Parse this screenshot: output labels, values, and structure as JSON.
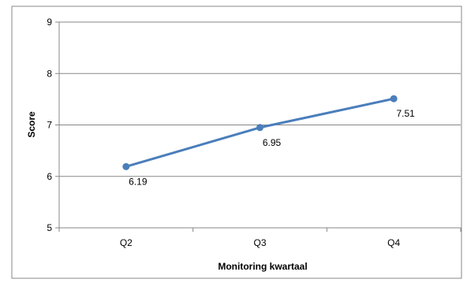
{
  "chart_data": {
    "type": "line",
    "title": "",
    "categories": [
      "Q2",
      "Q3",
      "Q4"
    ],
    "series": [
      {
        "values": [
          6.19,
          6.95,
          7.51
        ],
        "color": "#4a7ebb"
      }
    ],
    "data_labels": [
      "6.19",
      "6.95",
      "7.51"
    ],
    "xlabel": "Monitoring kwartaal",
    "ylabel": "Score",
    "ylim": [
      5,
      9
    ],
    "yticks": [
      "5",
      "6",
      "7",
      "8",
      "9"
    ],
    "grid": true,
    "legend": "none"
  },
  "colors": {
    "series": "#4a7ebb",
    "gridline": "#878787",
    "border": "#878787"
  }
}
